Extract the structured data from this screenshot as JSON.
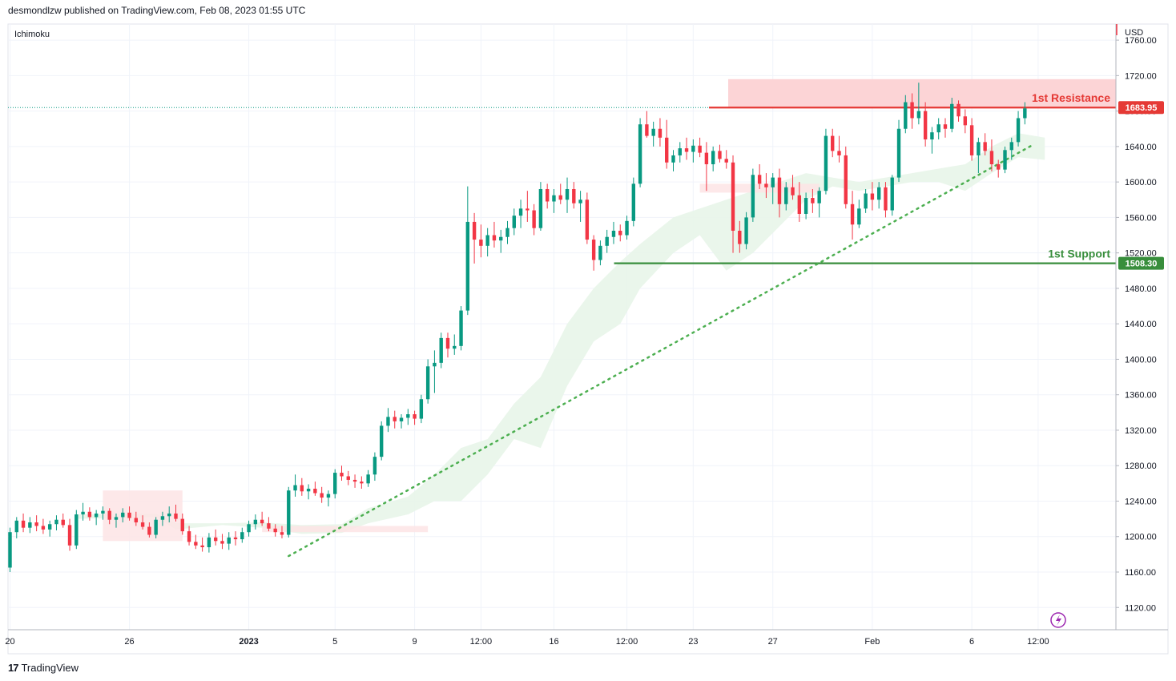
{
  "header": {
    "published_text": "desmondlzw published on TradingView.com, Feb 08, 2023 01:55 UTC"
  },
  "indicator_label": "Ichimoku",
  "currency": "USD",
  "footer": {
    "brand": "TradingView",
    "logo_icon": "tradingview-logo-icon"
  },
  "colors": {
    "up": "#089981",
    "down": "#f23645",
    "resistance": "#e53935",
    "support": "#388e3c",
    "trendline": "#4caf50",
    "resistance_zone": "#fcd4d6",
    "cloud_bull": "#e8f5e9",
    "cloud_bear": "#fde4e5"
  },
  "chart_data": {
    "type": "candlestick",
    "y_axis": {
      "min": 1100,
      "max": 1770,
      "ticks": [
        1760,
        1720,
        1680,
        1640,
        1600,
        1560,
        1520,
        1480,
        1440,
        1400,
        1360,
        1320,
        1280,
        1240,
        1200,
        1160,
        1120
      ],
      "tick_labels": [
        "1760.00",
        "1720.00",
        "1680.00",
        "1640.00",
        "1600.00",
        "1560.00",
        "1520.00",
        "1480.00",
        "1440.00",
        "1400.00",
        "1360.00",
        "1320.00",
        "1280.00",
        "1240.00",
        "1200.00",
        "1160.00",
        "1120.00"
      ]
    },
    "x_axis": {
      "index_range": [
        0,
        154
      ],
      "ticks": [
        {
          "label": "20",
          "i": 0,
          "bold": false
        },
        {
          "label": "26",
          "i": 18,
          "bold": false
        },
        {
          "label": "2023",
          "i": 36,
          "bold": true
        },
        {
          "label": "5",
          "i": 49,
          "bold": false
        },
        {
          "label": "9",
          "i": 61,
          "bold": false
        },
        {
          "label": "12:00",
          "i": 71,
          "bold": false
        },
        {
          "label": "16",
          "i": 82,
          "bold": false
        },
        {
          "label": "12:00",
          "i": 93,
          "bold": false
        },
        {
          "label": "23",
          "i": 103,
          "bold": false
        },
        {
          "label": "27",
          "i": 115,
          "bold": false
        },
        {
          "label": "Feb",
          "i": 130,
          "bold": false
        },
        {
          "label": "6",
          "i": 145,
          "bold": false
        },
        {
          "label": "12:00",
          "i": 155,
          "bold": false
        }
      ]
    },
    "candles": [
      [
        1165,
        1210,
        1160,
        1205
      ],
      [
        1205,
        1222,
        1198,
        1218
      ],
      [
        1218,
        1226,
        1205,
        1210
      ],
      [
        1210,
        1222,
        1204,
        1216
      ],
      [
        1216,
        1224,
        1206,
        1212
      ],
      [
        1212,
        1220,
        1203,
        1208
      ],
      [
        1208,
        1218,
        1200,
        1214
      ],
      [
        1214,
        1224,
        1207,
        1219
      ],
      [
        1219,
        1226,
        1210,
        1213
      ],
      [
        1213,
        1220,
        1184,
        1190
      ],
      [
        1190,
        1230,
        1186,
        1225
      ],
      [
        1225,
        1238,
        1218,
        1228
      ],
      [
        1228,
        1233,
        1218,
        1222
      ],
      [
        1222,
        1230,
        1213,
        1226
      ],
      [
        1226,
        1234,
        1219,
        1229
      ],
      [
        1229,
        1232,
        1214,
        1219
      ],
      [
        1219,
        1226,
        1210,
        1222
      ],
      [
        1222,
        1232,
        1216,
        1227
      ],
      [
        1227,
        1234,
        1218,
        1221
      ],
      [
        1221,
        1228,
        1212,
        1216
      ],
      [
        1216,
        1224,
        1208,
        1211
      ],
      [
        1211,
        1216,
        1199,
        1202
      ],
      [
        1202,
        1222,
        1198,
        1219
      ],
      [
        1219,
        1228,
        1212,
        1223
      ],
      [
        1223,
        1234,
        1216,
        1226
      ],
      [
        1226,
        1236,
        1217,
        1220
      ],
      [
        1220,
        1226,
        1202,
        1206
      ],
      [
        1206,
        1212,
        1190,
        1194
      ],
      [
        1194,
        1202,
        1186,
        1190
      ],
      [
        1190,
        1199,
        1183,
        1188
      ],
      [
        1188,
        1204,
        1182,
        1199
      ],
      [
        1199,
        1208,
        1190,
        1195
      ],
      [
        1195,
        1203,
        1186,
        1192
      ],
      [
        1192,
        1205,
        1185,
        1199
      ],
      [
        1199,
        1206,
        1190,
        1197
      ],
      [
        1197,
        1210,
        1193,
        1205
      ],
      [
        1205,
        1218,
        1200,
        1214
      ],
      [
        1214,
        1225,
        1208,
        1219
      ],
      [
        1219,
        1228,
        1212,
        1215
      ],
      [
        1215,
        1222,
        1206,
        1209
      ],
      [
        1209,
        1214,
        1200,
        1205
      ],
      [
        1205,
        1212,
        1198,
        1202
      ],
      [
        1202,
        1256,
        1199,
        1252
      ],
      [
        1252,
        1270,
        1245,
        1258
      ],
      [
        1258,
        1266,
        1246,
        1251
      ],
      [
        1251,
        1259,
        1242,
        1254
      ],
      [
        1254,
        1262,
        1246,
        1249
      ],
      [
        1249,
        1256,
        1238,
        1244
      ],
      [
        1244,
        1252,
        1234,
        1248
      ],
      [
        1248,
        1276,
        1243,
        1272
      ],
      [
        1272,
        1280,
        1263,
        1268
      ],
      [
        1268,
        1274,
        1258,
        1264
      ],
      [
        1264,
        1270,
        1255,
        1262
      ],
      [
        1262,
        1268,
        1254,
        1260
      ],
      [
        1260,
        1275,
        1256,
        1270
      ],
      [
        1270,
        1295,
        1263,
        1290
      ],
      [
        1290,
        1330,
        1286,
        1325
      ],
      [
        1325,
        1345,
        1318,
        1335
      ],
      [
        1335,
        1342,
        1322,
        1330
      ],
      [
        1330,
        1338,
        1322,
        1334
      ],
      [
        1334,
        1344,
        1326,
        1338
      ],
      [
        1338,
        1342,
        1326,
        1333
      ],
      [
        1333,
        1360,
        1328,
        1355
      ],
      [
        1355,
        1400,
        1350,
        1392
      ],
      [
        1392,
        1410,
        1362,
        1396
      ],
      [
        1396,
        1430,
        1390,
        1424
      ],
      [
        1424,
        1430,
        1402,
        1412
      ],
      [
        1412,
        1428,
        1405,
        1415
      ],
      [
        1415,
        1460,
        1410,
        1455
      ],
      [
        1455,
        1595,
        1450,
        1555
      ],
      [
        1555,
        1565,
        1508,
        1535
      ],
      [
        1535,
        1552,
        1515,
        1528
      ],
      [
        1528,
        1548,
        1516,
        1540
      ],
      [
        1540,
        1555,
        1526,
        1534
      ],
      [
        1534,
        1546,
        1520,
        1538
      ],
      [
        1538,
        1556,
        1530,
        1548
      ],
      [
        1548,
        1570,
        1540,
        1562
      ],
      [
        1562,
        1580,
        1548,
        1570
      ],
      [
        1570,
        1590,
        1555,
        1568
      ],
      [
        1568,
        1575,
        1540,
        1548
      ],
      [
        1548,
        1600,
        1545,
        1592
      ],
      [
        1592,
        1598,
        1570,
        1578
      ],
      [
        1578,
        1592,
        1565,
        1585
      ],
      [
        1585,
        1598,
        1575,
        1580
      ],
      [
        1580,
        1605,
        1565,
        1592
      ],
      [
        1592,
        1600,
        1570,
        1576
      ],
      [
        1576,
        1590,
        1555,
        1580
      ],
      [
        1580,
        1588,
        1530,
        1535
      ],
      [
        1535,
        1540,
        1500,
        1512
      ],
      [
        1512,
        1534,
        1506,
        1528
      ],
      [
        1528,
        1546,
        1520,
        1538
      ],
      [
        1538,
        1555,
        1530,
        1545
      ],
      [
        1545,
        1552,
        1533,
        1540
      ],
      [
        1540,
        1562,
        1535,
        1556
      ],
      [
        1556,
        1605,
        1550,
        1598
      ],
      [
        1598,
        1672,
        1594,
        1665
      ],
      [
        1665,
        1680,
        1650,
        1652
      ],
      [
        1652,
        1668,
        1640,
        1660
      ],
      [
        1660,
        1672,
        1640,
        1650
      ],
      [
        1650,
        1670,
        1615,
        1622
      ],
      [
        1622,
        1636,
        1612,
        1630
      ],
      [
        1630,
        1645,
        1622,
        1638
      ],
      [
        1638,
        1650,
        1625,
        1634
      ],
      [
        1634,
        1648,
        1622,
        1641
      ],
      [
        1641,
        1650,
        1628,
        1633
      ],
      [
        1633,
        1645,
        1590,
        1620
      ],
      [
        1620,
        1640,
        1612,
        1635
      ],
      [
        1635,
        1642,
        1622,
        1626
      ],
      [
        1626,
        1636,
        1615,
        1622
      ],
      [
        1622,
        1630,
        1520,
        1545
      ],
      [
        1545,
        1556,
        1520,
        1530
      ],
      [
        1530,
        1566,
        1524,
        1560
      ],
      [
        1560,
        1615,
        1555,
        1608
      ],
      [
        1608,
        1620,
        1592,
        1598
      ],
      [
        1598,
        1610,
        1582,
        1594
      ],
      [
        1594,
        1610,
        1575,
        1605
      ],
      [
        1605,
        1615,
        1560,
        1575
      ],
      [
        1575,
        1600,
        1568,
        1594
      ],
      [
        1594,
        1608,
        1580,
        1585
      ],
      [
        1585,
        1600,
        1555,
        1564
      ],
      [
        1564,
        1588,
        1558,
        1582
      ],
      [
        1582,
        1592,
        1565,
        1576
      ],
      [
        1576,
        1594,
        1560,
        1590
      ],
      [
        1590,
        1660,
        1586,
        1652
      ],
      [
        1652,
        1660,
        1628,
        1635
      ],
      [
        1635,
        1652,
        1622,
        1630
      ],
      [
        1630,
        1640,
        1570,
        1575
      ],
      [
        1575,
        1590,
        1535,
        1552
      ],
      [
        1552,
        1580,
        1548,
        1570
      ],
      [
        1570,
        1592,
        1565,
        1587
      ],
      [
        1587,
        1600,
        1568,
        1580
      ],
      [
        1580,
        1600,
        1570,
        1594
      ],
      [
        1594,
        1600,
        1560,
        1568
      ],
      [
        1568,
        1608,
        1562,
        1605
      ],
      [
        1605,
        1670,
        1600,
        1660
      ],
      [
        1660,
        1698,
        1655,
        1690
      ],
      [
        1690,
        1700,
        1660,
        1672
      ],
      [
        1672,
        1712,
        1665,
        1680
      ],
      [
        1680,
        1690,
        1640,
        1648
      ],
      [
        1648,
        1662,
        1632,
        1656
      ],
      [
        1656,
        1672,
        1648,
        1665
      ],
      [
        1665,
        1672,
        1650,
        1660
      ],
      [
        1660,
        1695,
        1656,
        1688
      ],
      [
        1688,
        1692,
        1668,
        1674
      ],
      [
        1674,
        1682,
        1655,
        1664
      ],
      [
        1664,
        1672,
        1624,
        1630
      ],
      [
        1630,
        1650,
        1610,
        1645
      ],
      [
        1645,
        1655,
        1630,
        1635
      ],
      [
        1635,
        1648,
        1612,
        1620
      ],
      [
        1620,
        1625,
        1605,
        1614
      ],
      [
        1614,
        1640,
        1610,
        1636
      ],
      [
        1636,
        1650,
        1625,
        1645
      ],
      [
        1645,
        1680,
        1640,
        1672
      ],
      [
        1672,
        1690,
        1665,
        1683
      ]
    ],
    "cloud": [
      {
        "i": 10,
        "a": 1220,
        "b": 1225
      },
      {
        "i": 22,
        "a": 1222,
        "b": 1226
      },
      {
        "i": 25,
        "a": 1208,
        "b": 1215
      },
      {
        "i": 32,
        "a": 1215,
        "b": 1213
      },
      {
        "i": 38,
        "a": 1216,
        "b": 1210
      },
      {
        "i": 44,
        "a": 1213,
        "b": 1203
      },
      {
        "i": 50,
        "a": 1214,
        "b": 1204
      },
      {
        "i": 54,
        "a": 1232,
        "b": 1215
      },
      {
        "i": 60,
        "a": 1245,
        "b": 1225
      },
      {
        "i": 64,
        "a": 1270,
        "b": 1240
      },
      {
        "i": 68,
        "a": 1300,
        "b": 1240
      },
      {
        "i": 72,
        "a": 1310,
        "b": 1270
      },
      {
        "i": 76,
        "a": 1350,
        "b": 1310
      },
      {
        "i": 80,
        "a": 1380,
        "b": 1300
      },
      {
        "i": 84,
        "a": 1440,
        "b": 1370
      },
      {
        "i": 88,
        "a": 1480,
        "b": 1420
      },
      {
        "i": 92,
        "a": 1510,
        "b": 1440
      },
      {
        "i": 95,
        "a": 1530,
        "b": 1480
      },
      {
        "i": 100,
        "a": 1560,
        "b": 1520
      },
      {
        "i": 104,
        "a": 1570,
        "b": 1540
      },
      {
        "i": 108,
        "a": 1580,
        "b": 1500
      },
      {
        "i": 112,
        "a": 1590,
        "b": 1520
      },
      {
        "i": 116,
        "a": 1600,
        "b": 1550
      },
      {
        "i": 120,
        "a": 1610,
        "b": 1580
      },
      {
        "i": 124,
        "a": 1605,
        "b": 1595
      },
      {
        "i": 128,
        "a": 1590,
        "b": 1600
      },
      {
        "i": 132,
        "a": 1595,
        "b": 1605
      },
      {
        "i": 136,
        "a": 1600,
        "b": 1610
      },
      {
        "i": 140,
        "a": 1615,
        "b": 1600
      },
      {
        "i": 144,
        "a": 1620,
        "b": 1590
      },
      {
        "i": 148,
        "a": 1640,
        "b": 1610
      },
      {
        "i": 152,
        "a": 1655,
        "b": 1628
      },
      {
        "i": 156,
        "a": 1650,
        "b": 1625
      }
    ],
    "bear_cloud_segments": [
      {
        "i0": 14,
        "i1": 26,
        "top": 1252,
        "bottom": 1195
      },
      {
        "i0": 38,
        "i1": 63,
        "top": 1212,
        "bottom": 1205
      },
      {
        "i0": 104,
        "i1": 122,
        "top": 1598,
        "bottom": 1588
      }
    ],
    "resistance": {
      "label": "1st Resistance",
      "price_label": "1683.95",
      "value": 1683.95,
      "zone_top": 1716,
      "zone_bottom": 1683.95,
      "zone_start_i": 109
    },
    "support": {
      "label": "1st Support",
      "price_label": "1508.30",
      "value": 1508.3,
      "start_i": 93
    },
    "trendline": {
      "from": {
        "i": 42,
        "y": 1178
      },
      "to": {
        "i": 154,
        "y": 1641
      }
    },
    "last_price_line": 1683.95
  }
}
